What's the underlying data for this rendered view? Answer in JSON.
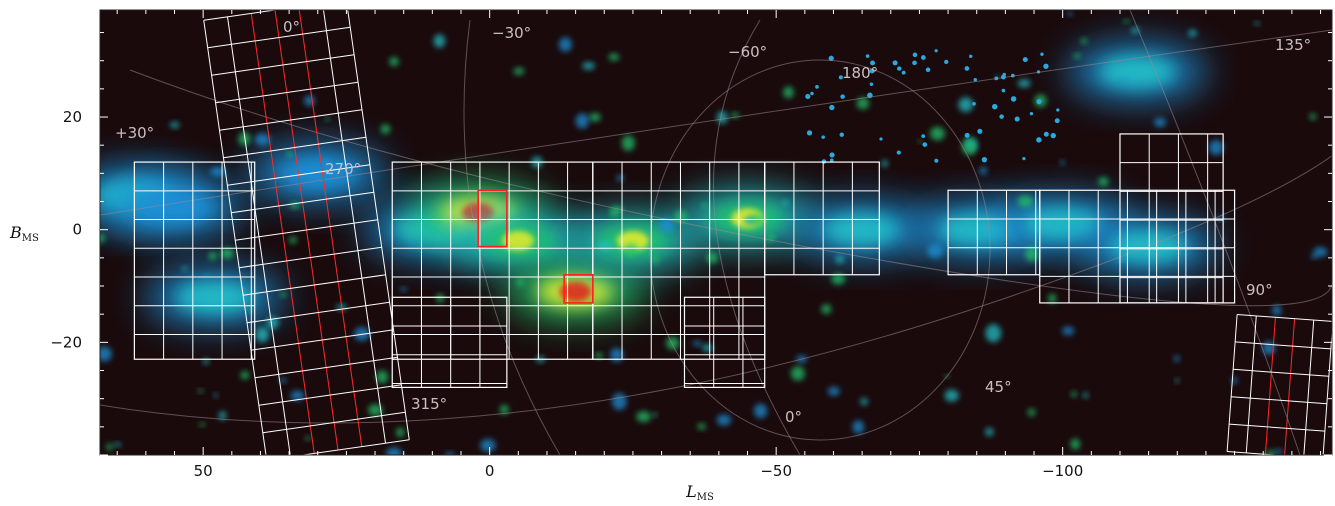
{
  "chart_data": {
    "type": "heatmap",
    "title": "",
    "xlabel": "L",
    "xlabel_sub": "MS",
    "ylabel": "B",
    "ylabel_sub": "MS",
    "xlim": [
      68,
      -147
    ],
    "ylim": [
      -40,
      39
    ],
    "x_ticks": [
      50,
      0,
      -50,
      -100
    ],
    "x_tick_labels": [
      "50",
      "0",
      "−50",
      "−100"
    ],
    "y_ticks": [
      20,
      0,
      -20
    ],
    "y_tick_labels": [
      "20",
      "0",
      "−20"
    ],
    "grid_overlay_labels": [
      "0°",
      "−30°",
      "−60°",
      "180°",
      "135°",
      "+30°",
      "270°",
      "90°",
      "315°",
      "0°",
      "45°"
    ],
    "colormap": [
      "#1a0a0c",
      "#2a1060",
      "#1f8fd6",
      "#20c0c8",
      "#22c26a",
      "#d8e832",
      "#f5b020",
      "#e0301c"
    ],
    "emission_ridge": [
      {
        "l": 62,
        "b": 6,
        "intensity": 0.35
      },
      {
        "l": 55,
        "b": 4,
        "intensity": 0.3
      },
      {
        "l": 48,
        "b": -12,
        "intensity": 0.35
      },
      {
        "l": 30,
        "b": 10,
        "intensity": 0.25
      },
      {
        "l": 10,
        "b": 0,
        "intensity": 0.4
      },
      {
        "l": 2,
        "b": 3,
        "intensity": 0.95
      },
      {
        "l": -5,
        "b": -2,
        "intensity": 0.75
      },
      {
        "l": -15,
        "b": -11,
        "intensity": 1.0
      },
      {
        "l": -25,
        "b": -2,
        "intensity": 0.7
      },
      {
        "l": -45,
        "b": 2,
        "intensity": 0.7
      },
      {
        "l": -65,
        "b": 0,
        "intensity": 0.5
      },
      {
        "l": -85,
        "b": 0,
        "intensity": 0.45
      },
      {
        "l": -100,
        "b": 1,
        "intensity": 0.45
      },
      {
        "l": -115,
        "b": -3,
        "intensity": 0.35
      },
      {
        "l": -113,
        "b": 28,
        "intensity": 0.35
      }
    ],
    "pointing_blocks_white": [
      {
        "l0": 62,
        "l1": 41,
        "b0": -23,
        "b1": 12
      },
      {
        "l0": 17,
        "l1": -18,
        "b0": -23,
        "b1": 12
      },
      {
        "l0": -18,
        "l1": -48,
        "b0": -23,
        "b1": 12
      },
      {
        "l0": -48,
        "l1": -68,
        "b0": -8,
        "b1": 12
      },
      {
        "l0": -34,
        "l1": -48,
        "b0": -28,
        "b1": -12
      },
      {
        "l0": -80,
        "l1": -96,
        "b0": -8,
        "b1": 7
      },
      {
        "l0": -96,
        "l1": -130,
        "b0": -13,
        "b1": 7
      },
      {
        "l0": -110,
        "l1": -128,
        "b0": -13,
        "b1": 17
      },
      {
        "l0": 17,
        "l1": -3,
        "b0": -28,
        "b1": -12
      }
    ],
    "highlight_fields_red": [
      {
        "l0": 2,
        "l1": -3,
        "b0": -3,
        "b1": 7
      },
      {
        "l0": -13,
        "l1": -18,
        "b0": -13,
        "b1": -8
      }
    ]
  }
}
